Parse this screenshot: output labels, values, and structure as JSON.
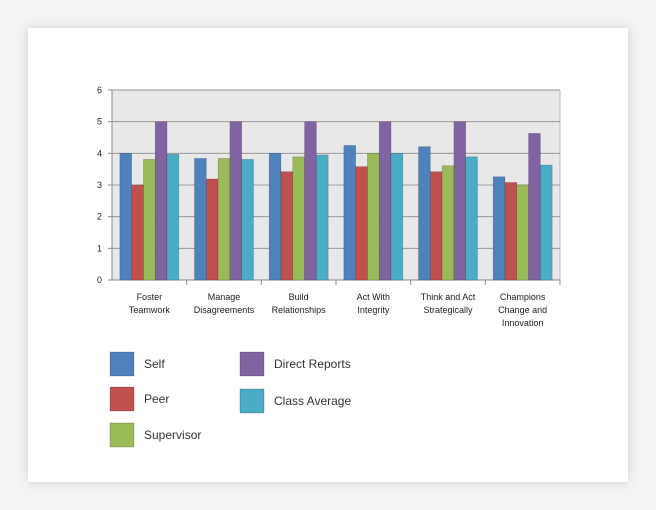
{
  "chart_data": {
    "type": "bar",
    "categories": [
      [
        "Foster",
        "Teamwork"
      ],
      [
        "Manage",
        "Disagreements"
      ],
      [
        "Build",
        "Relationships"
      ],
      [
        "Act With",
        "Integrity"
      ],
      [
        "Think and Act",
        "Strategically"
      ],
      [
        "Champions",
        "Change and",
        "Innovation"
      ]
    ],
    "series": [
      {
        "name": "Self",
        "color": "#4f81bd",
        "values": [
          4.0,
          3.84,
          4.0,
          4.25,
          4.21,
          3.26
        ]
      },
      {
        "name": "Peer",
        "color": "#c0504d",
        "values": [
          3.0,
          3.19,
          3.42,
          3.58,
          3.42,
          3.08
        ]
      },
      {
        "name": "Supervisor",
        "color": "#9bbb59",
        "values": [
          3.81,
          3.84,
          3.89,
          4.0,
          3.61,
          3.0
        ]
      },
      {
        "name": "Direct Reports",
        "color": "#8064a2",
        "values": [
          5.0,
          5.0,
          5.0,
          5.0,
          5.0,
          4.63
        ]
      },
      {
        "name": "Class Average",
        "color": "#4bacc6",
        "values": [
          3.97,
          3.81,
          3.95,
          4.0,
          3.89,
          3.63
        ]
      }
    ],
    "ylim": [
      0,
      6
    ],
    "yticks": [
      "0",
      "1",
      "2",
      "3",
      "4",
      "5",
      "6"
    ],
    "grid": true,
    "legend": "bottom-left",
    "plot_background": "#e8e8e8"
  }
}
